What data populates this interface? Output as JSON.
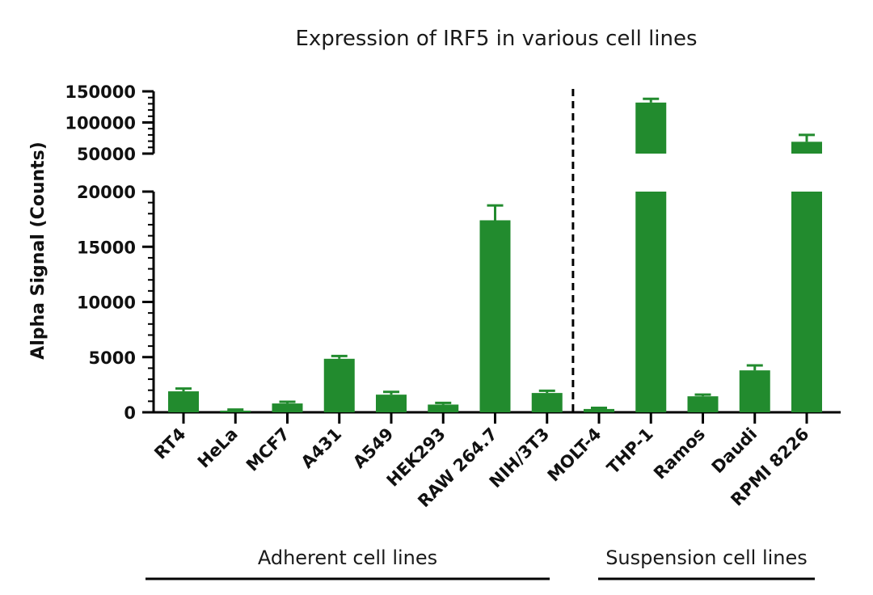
{
  "chart_data": {
    "type": "bar",
    "title": "Expression of IRF5 in various cell lines",
    "xlabel": "",
    "ylabel": "Alpha Signal (Counts)",
    "y_axis_broken": true,
    "lower_segment": {
      "ylim": [
        0,
        20000
      ],
      "ticks": [
        "0",
        "5000",
        "10000",
        "15000",
        "20000"
      ]
    },
    "upper_segment": {
      "ylim": [
        50000,
        150000
      ],
      "ticks": [
        "50000",
        "100000",
        "150000"
      ]
    },
    "categories": [
      "RT4",
      "HeLa",
      "MCF7",
      "A431",
      "A549",
      "HEK293",
      "RAW 264.7",
      "NIH/3T3",
      "MOLT-4",
      "THP-1",
      "Ramos",
      "Daudi",
      "RPMI 8226"
    ],
    "values": [
      1900,
      150,
      800,
      4850,
      1600,
      700,
      17400,
      1750,
      300,
      132000,
      1450,
      3800,
      69000
    ],
    "error_plus": [
      250,
      100,
      150,
      250,
      250,
      150,
      1350,
      200,
      100,
      6000,
      150,
      450,
      11000
    ],
    "bar_color": "#228B2E",
    "axis_color": "#000000",
    "groups": [
      {
        "label": "Adherent cell lines",
        "categories": [
          "RT4",
          "HeLa",
          "MCF7",
          "A431",
          "A549",
          "HEK293",
          "RAW 264.7",
          "NIH/3T3"
        ]
      },
      {
        "label": "Suspension cell lines",
        "categories": [
          "MOLT-4",
          "THP-1",
          "Ramos",
          "Daudi",
          "RPMI 8226"
        ]
      }
    ],
    "divider": "dashed line between NIH/3T3 and MOLT-4",
    "grid": false,
    "legend": "none"
  }
}
